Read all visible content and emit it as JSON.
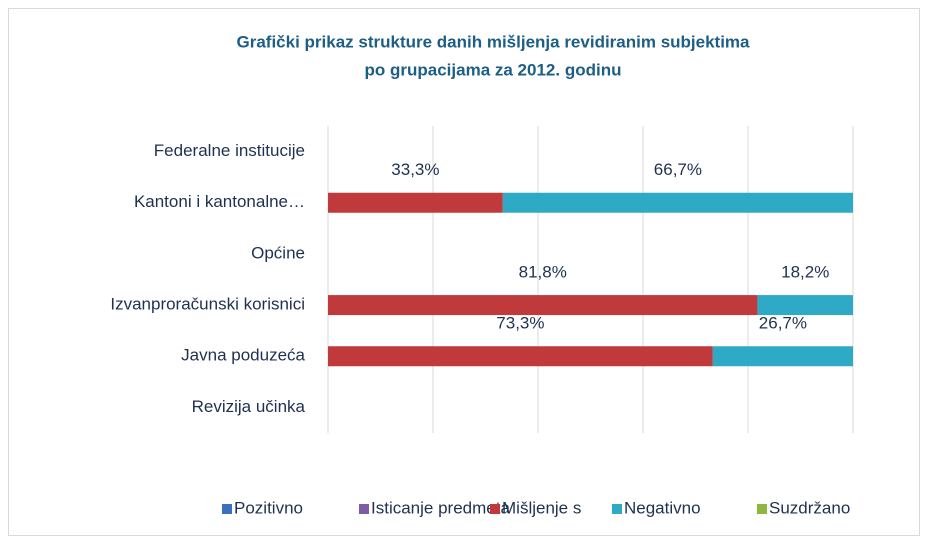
{
  "chart_data": {
    "type": "stacked_bar_horizontal",
    "title": [
      "Grafički prikaz strukture danih mišljenja revidiranim subjektima",
      "po grupacijama  za 2012. godinu"
    ],
    "categories": [
      "Federalne institucije",
      "Kantoni i kantonalne…",
      "Općine",
      "Izvanproračunski korisnici",
      "Javna poduzeća",
      "Revizija učinka"
    ],
    "series": [
      {
        "name": "Pozitivno",
        "color": "#3c6fbf",
        "values": [
          null,
          null,
          null,
          null,
          null,
          null
        ]
      },
      {
        "name": "Isticanje predmeta",
        "color": "#7d5ca6",
        "values": [
          null,
          null,
          null,
          null,
          null,
          null
        ]
      },
      {
        "name": "Mišljenje s",
        "color": "#c0393b",
        "values": [
          null,
          33.3,
          null,
          81.8,
          73.3,
          null
        ],
        "value_labels": [
          null,
          "33,3%",
          null,
          "81,8%",
          "73,3%",
          null
        ]
      },
      {
        "name": "Negativno",
        "color": "#2eaac6",
        "values": [
          null,
          66.7,
          null,
          18.2,
          26.7,
          null
        ],
        "value_labels": [
          null,
          "66,7%",
          null,
          "18,2%",
          "26,7%",
          null
        ]
      },
      {
        "name": "Suzdržano",
        "color": "#8db83f",
        "values": [
          null,
          null,
          null,
          null,
          null,
          null
        ]
      }
    ],
    "xlim": [
      0,
      100
    ],
    "xticks": [
      0,
      20,
      40,
      60,
      80,
      100
    ],
    "grid": true,
    "legend": "bottom"
  }
}
